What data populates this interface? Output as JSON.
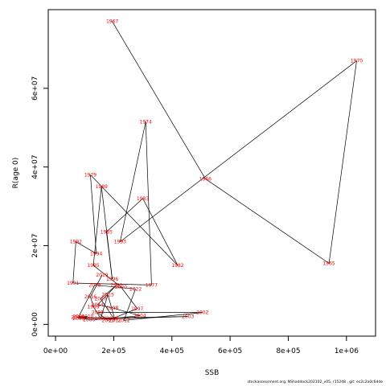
{
  "chart_data": {
    "type": "line",
    "xlabel": "SSB",
    "ylabel": "R(age 0)",
    "xlim": [
      -25000,
      1100000
    ],
    "ylim": [
      -3000000,
      80000000
    ],
    "x_ticks": [
      {
        "value": 0,
        "label": "0e+00"
      },
      {
        "value": 200000,
        "label": "2e+05"
      },
      {
        "value": 400000,
        "label": "4e+05"
      },
      {
        "value": 600000,
        "label": "6e+05"
      },
      {
        "value": 800000,
        "label": "8e+05"
      },
      {
        "value": 1000000,
        "label": "1e+06"
      }
    ],
    "y_ticks": [
      {
        "value": 0,
        "label": "0e+00"
      },
      {
        "value": 20000000,
        "label": "2e+07"
      },
      {
        "value": 40000000,
        "label": "4e+07"
      },
      {
        "value": 60000000,
        "label": "6e+07"
      }
    ],
    "line_color": "#000000",
    "label_color": "#ff0000",
    "grid": false,
    "points": [
      {
        "year": "1965",
        "ssb": 940000,
        "rec": 15500000
      },
      {
        "year": "1966",
        "ssb": 515000,
        "rec": 37000000
      },
      {
        "year": "1967",
        "ssb": 195000,
        "rec": 77000000
      },
      {
        "year": "1970",
        "ssb": 1035000,
        "rec": 67000000
      },
      {
        "year": "1974",
        "ssb": 310000,
        "rec": 51500000
      },
      {
        "year": "1977",
        "ssb": 330000,
        "rec": 10000000
      },
      {
        "year": "1979",
        "ssb": 120000,
        "rec": 38000000
      },
      {
        "year": "1982",
        "ssb": 420000,
        "rec": 15000000
      },
      {
        "year": "1983",
        "ssb": 300000,
        "rec": 32000000
      },
      {
        "year": "1985",
        "ssb": 175000,
        "rec": 23500000
      },
      {
        "year": "1989",
        "ssb": 158000,
        "rec": 35000000
      },
      {
        "year": "1991",
        "ssb": 60000,
        "rec": 10500000
      },
      {
        "year": "1992",
        "ssb": 70000,
        "rec": 21000000
      },
      {
        "year": "1993",
        "ssb": 222000,
        "rec": 21000000
      },
      {
        "year": "1994",
        "ssb": 140000,
        "rec": 18000000
      },
      {
        "year": "1995",
        "ssb": 130000,
        "rec": 15000000
      },
      {
        "year": "1996",
        "ssb": 195000,
        "rec": 11500000
      },
      {
        "year": "1997",
        "ssb": 281000,
        "rec": 4000000
      },
      {
        "year": "1998",
        "ssb": 195000,
        "rec": 4200000
      },
      {
        "year": "1999",
        "ssb": 130000,
        "rec": 4500000
      },
      {
        "year": "2000",
        "ssb": 145000,
        "rec": 3000000
      },
      {
        "year": "2001",
        "ssb": 80000,
        "rec": 2000000
      },
      {
        "year": "2002",
        "ssb": 505000,
        "rec": 3000000
      },
      {
        "year": "2003",
        "ssb": 455000,
        "rec": 2000000
      },
      {
        "year": "2004",
        "ssb": 290000,
        "rec": 2200000
      },
      {
        "year": "2005",
        "ssb": 80000,
        "rec": 1500000
      },
      {
        "year": "2006",
        "ssb": 115000,
        "rec": 1200000
      },
      {
        "year": "2007",
        "ssb": 75000,
        "rec": 1800000
      },
      {
        "year": "2008",
        "ssb": 195000,
        "rec": 1500000
      },
      {
        "year": "2009",
        "ssb": 155000,
        "rec": 1500000
      },
      {
        "year": "2010",
        "ssb": 110000,
        "rec": 2000000
      },
      {
        "year": "2011",
        "ssb": 205000,
        "rec": 1000000
      },
      {
        "year": "2012",
        "ssb": 235000,
        "rec": 1000000
      },
      {
        "year": "2013",
        "ssb": 180000,
        "rec": 1000000
      },
      {
        "year": "2014",
        "ssb": 145000,
        "rec": 5000000
      },
      {
        "year": "2015",
        "ssb": 180000,
        "rec": 7500000
      },
      {
        "year": "2016",
        "ssb": 120000,
        "rec": 7000000
      },
      {
        "year": "2017",
        "ssb": 155000,
        "rec": 6500000
      },
      {
        "year": "2018",
        "ssb": 135000,
        "rec": 10000000
      },
      {
        "year": "2019",
        "ssb": 160000,
        "rec": 12500000
      },
      {
        "year": "2020",
        "ssb": 225000,
        "rec": 9500000
      },
      {
        "year": "2021",
        "ssb": 210000,
        "rec": 10000000
      },
      {
        "year": "2022",
        "ssb": 275000,
        "rec": 9000000
      }
    ],
    "path_order": [
      "1967",
      "1966",
      "1965",
      "1970",
      "1993",
      "1974",
      "1977",
      "1991",
      "1992",
      "1994",
      "1979",
      "1982",
      "1983",
      "1985",
      "1996",
      "1989",
      "1995",
      "2020",
      "1997",
      "2013",
      "2000",
      "2002",
      "2012",
      "2022",
      "2018",
      "2001",
      "2010",
      "2005",
      "2003",
      "2006",
      "2007",
      "2008",
      "2004",
      "1998",
      "2014",
      "2021",
      "2017",
      "2011",
      "2015",
      "2009",
      "1999",
      "2016",
      "2019"
    ]
  },
  "footer": {
    "credit": "stockassessment.org, NShaddock202102_v05, r15248 , git: ec2c2a0c6dde"
  }
}
